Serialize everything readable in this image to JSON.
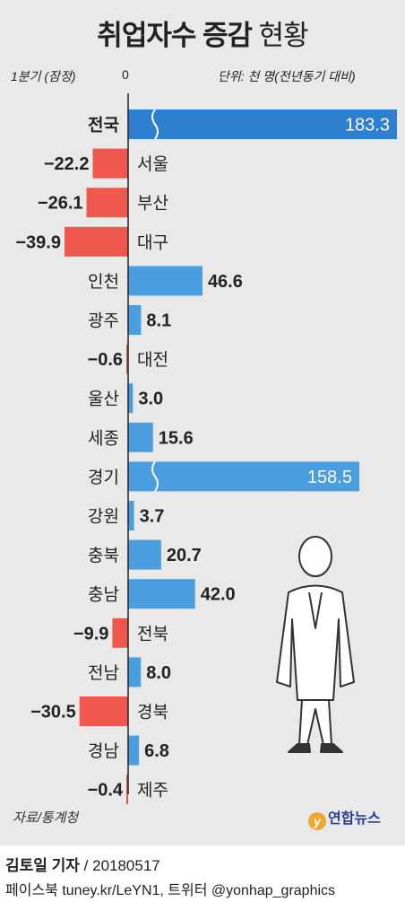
{
  "title": {
    "bold": "취업자수 증감",
    "light": "현황"
  },
  "period_label": "1분기 (잠정)",
  "zero_label": "0",
  "unit_label": "단위: 천 명(전년동기 대비)",
  "source": "자료/통계청",
  "logo_text": "연합뉴스",
  "byline": {
    "author": "김토일 기자",
    "date": "/ 20180517"
  },
  "social": "페이스북 tuney.kr/LeYN1, 트위터 @yonhap_graphics",
  "colors": {
    "positive": "#4a9ee0",
    "negative": "#f0574f",
    "total": "#2f7fd0",
    "background": "#e9e9e9"
  },
  "chart_data": {
    "type": "bar",
    "orientation": "horizontal",
    "categories": [
      "전국",
      "서울",
      "부산",
      "대구",
      "인천",
      "광주",
      "대전",
      "울산",
      "세종",
      "경기",
      "강원",
      "충북",
      "충남",
      "전북",
      "전남",
      "경북",
      "경남",
      "제주"
    ],
    "values": [
      183.3,
      -22.2,
      -26.1,
      -39.9,
      46.6,
      8.1,
      -0.6,
      3.0,
      15.6,
      158.5,
      3.7,
      20.7,
      42.0,
      -9.9,
      8.0,
      -30.5,
      6.8,
      -0.4
    ],
    "value_labels": [
      "183.3",
      "−22.2",
      "−26.1",
      "−39.9",
      "46.6",
      "8.1",
      "−0.6",
      "3.0",
      "15.6",
      "158.5",
      "3.7",
      "20.7",
      "42.0",
      "−9.9",
      "8.0",
      "−30.5",
      "6.8",
      "−0.4"
    ],
    "broken_axis": [
      "전국",
      "경기"
    ],
    "xlabel": "1분기 (잠정)",
    "unit": "단위: 천 명(전년동기 대비)"
  }
}
